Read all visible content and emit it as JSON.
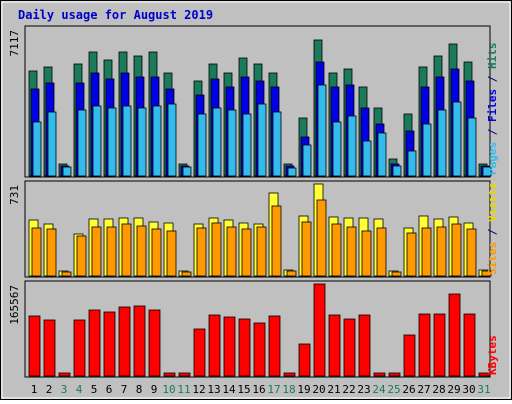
{
  "chart_data": [
    {
      "type": "bar",
      "title": "Daily usage for August 2019",
      "max_label": "7117",
      "ylim": [
        0,
        7117
      ],
      "series": [
        {
          "name": "Hits",
          "color": "#1a7a5a",
          "values": [
            5100,
            5300,
            600,
            5400,
            6000,
            5600,
            6000,
            5800,
            6000,
            5000,
            600,
            4600,
            5400,
            5000,
            5700,
            5400,
            5000,
            600,
            2800,
            6600,
            5000,
            5200,
            4300,
            3300,
            800,
            3000,
            5300,
            5800,
            6400,
            5500,
            600
          ]
        },
        {
          "name": "Files",
          "color": "#0000e0",
          "values": [
            4200,
            4500,
            500,
            4500,
            5000,
            4700,
            5000,
            4800,
            4800,
            4200,
            500,
            3900,
            4700,
            4300,
            4800,
            4600,
            4300,
            500,
            1900,
            5500,
            4300,
            4400,
            3300,
            2500,
            600,
            2200,
            4300,
            4800,
            5200,
            4600,
            500
          ]
        },
        {
          "name": "Pages",
          "color": "#33bbee",
          "values": [
            2600,
            3100,
            450,
            3200,
            3400,
            3300,
            3400,
            3300,
            3400,
            3500,
            450,
            3000,
            3300,
            3200,
            3000,
            3500,
            3100,
            400,
            1500,
            4400,
            2600,
            2900,
            1700,
            2100,
            500,
            1200,
            2500,
            3200,
            3600,
            2800,
            450
          ]
        }
      ]
    },
    {
      "type": "bar",
      "max_label": "731",
      "ylim": [
        0,
        731
      ],
      "series": [
        {
          "name": "Visits",
          "color": "#ffff33",
          "values": [
            441,
            410,
            40,
            330,
            454,
            450,
            458,
            457,
            431,
            420,
            40,
            410,
            457,
            441,
            420,
            412,
            660,
            50,
            480,
            731,
            470,
            460,
            460,
            450,
            40,
            380,
            480,
            453,
            470,
            420,
            50
          ]
        },
        {
          "name": "Sites",
          "color": "#ff9900",
          "values": [
            380,
            370,
            35,
            320,
            390,
            390,
            410,
            400,
            370,
            360,
            35,
            380,
            420,
            390,
            370,
            390,
            560,
            40,
            430,
            600,
            410,
            390,
            360,
            380,
            35,
            340,
            380,
            390,
            410,
            370,
            40
          ]
        }
      ]
    },
    {
      "type": "bar",
      "max_label": "165567",
      "ylim": [
        0,
        165567
      ],
      "series": [
        {
          "name": "KBytes",
          "color": "#ff0000",
          "values": [
            108000,
            101000,
            5000,
            101000,
            119000,
            115000,
            124000,
            126000,
            118000,
            5000,
            5000,
            85000,
            110000,
            106000,
            103000,
            96000,
            108000,
            5000,
            58000,
            165567,
            109000,
            102000,
            109000,
            5000,
            5000,
            74000,
            111000,
            111000,
            148000,
            112000,
            5000
          ]
        }
      ]
    }
  ],
  "x_labels": [
    "1",
    "2",
    "3",
    "4",
    "5",
    "6",
    "7",
    "8",
    "9",
    "10",
    "11",
    "12",
    "13",
    "14",
    "15",
    "16",
    "17",
    "18",
    "19",
    "20",
    "21",
    "22",
    "23",
    "24",
    "25",
    "26",
    "27",
    "28",
    "29",
    "30",
    "31"
  ],
  "weekend_days": [
    "3",
    "4",
    "10",
    "11",
    "17",
    "18",
    "24",
    "25",
    "31"
  ],
  "right_labels": {
    "panel1": [
      {
        "text": "Pages",
        "color": "#33bbee"
      },
      {
        "text": " / ",
        "color": "#000080"
      },
      {
        "text": "Files",
        "color": "#0000e0"
      },
      {
        "text": " / ",
        "color": "#000080"
      },
      {
        "text": "Hits",
        "color": "#1a7a5a"
      }
    ],
    "panel2": [
      {
        "text": "Sites",
        "color": "#ff9900"
      },
      {
        "text": " / ",
        "color": "#000080"
      },
      {
        "text": "Visits",
        "color": "#e8d800"
      }
    ],
    "panel3": [
      {
        "text": "KBytes",
        "color": "#ff0000"
      }
    ]
  }
}
